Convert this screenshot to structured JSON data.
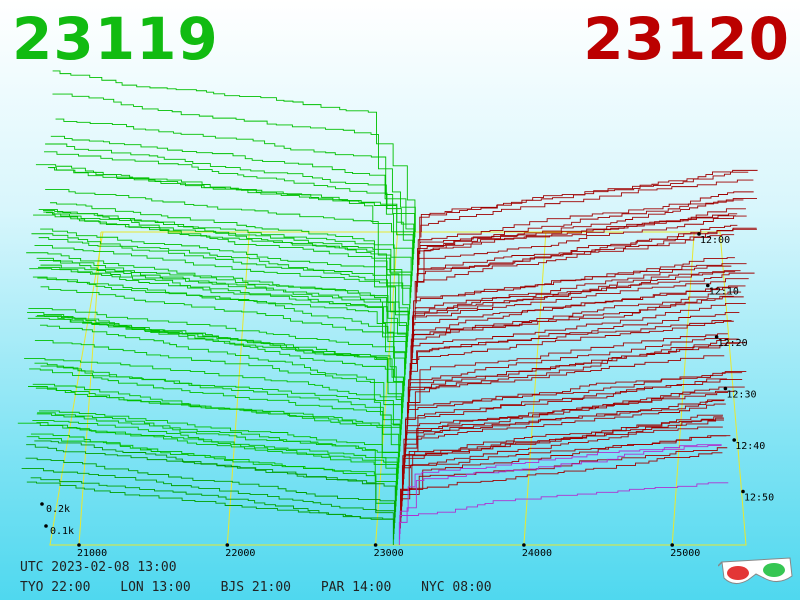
{
  "header": {
    "bid_price": "23119",
    "ask_price": "23120"
  },
  "chart_data": {
    "type": "area",
    "title": "",
    "xlabel": "",
    "ylabel": "",
    "x_ticks": [
      21000,
      22000,
      23000,
      24000,
      25000
    ],
    "x_tick_labels": [
      "21000",
      "22000",
      "23000",
      "24000",
      "25000"
    ],
    "volume_ticks": [
      "0.2k",
      "0.1k"
    ],
    "time_ticks": [
      "12:00",
      "12:10",
      "12:20",
      "12:30",
      "12:40",
      "12:50"
    ],
    "series": [
      {
        "name": "",
        "side": "bid",
        "price_range": [
          20700,
          23119
        ]
      },
      {
        "name": "",
        "side": "ask",
        "price_range": [
          23120,
          25300
        ]
      }
    ],
    "colors": {
      "bid": "#00b400",
      "ask": "#a00000",
      "latest_ask": "#b030d0",
      "grid": "#e8e830"
    }
  },
  "footer": {
    "utc": "UTC 2023-02-08 13:00",
    "zones": [
      "TYO 22:00",
      "LON 13:00",
      "BJS 21:00",
      "PAR 14:00",
      "NYC 08:00"
    ]
  },
  "icons": {
    "glasses": "3d-glasses-icon"
  }
}
